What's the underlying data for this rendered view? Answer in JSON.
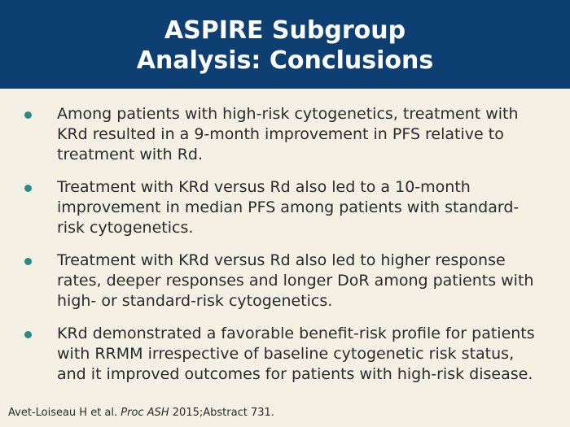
{
  "slide": {
    "title_line1": "ASPIRE Subgroup",
    "title_line2": "Analysis: Conclusions",
    "bullets": [
      "Among patients with high-risk cytogenetics, treatment with KRd resulted in a 9-month improvement in PFS relative to treatment with Rd.",
      "Treatment with KRd versus Rd also led to a 10-month improvement in median PFS among patients with standard-risk cytogenetics.",
      "Treatment with KRd versus Rd also led to higher response rates, deeper responses and longer DoR among patients with high- or standard-risk cytogenetics.",
      "KRd demonstrated a favorable benefit-risk profile for patients with RRMM irrespective of baseline cytogenetic risk status, and it improved outcomes for patients with high-risk disease."
    ],
    "citation": {
      "authors": "Avet-Loiseau H et al.",
      "journal": "Proc ASH",
      "details": "2015;Abstract 731."
    }
  },
  "colors": {
    "header_bg": "#0e3f73",
    "slide_bg": "#f4f1e4",
    "bullet_dot": "#2a8a87",
    "title_text": "#ffffff"
  }
}
